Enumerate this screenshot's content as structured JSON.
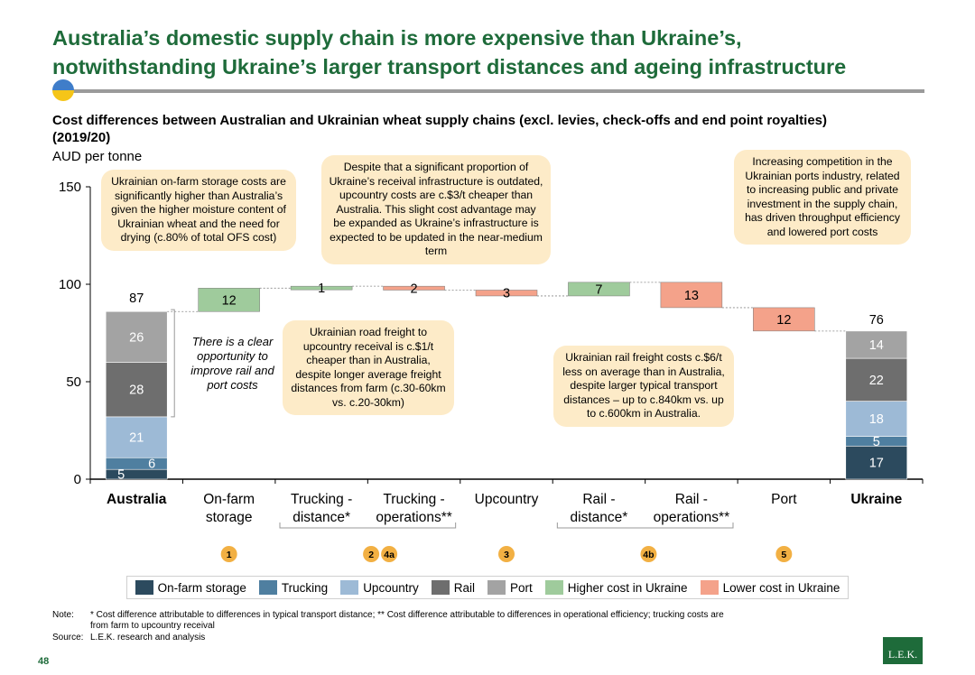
{
  "header": {
    "title_line1": "Australia’s domestic supply chain is more expensive than Ukraine’s,",
    "title_line2": "notwithstanding Ukraine’s larger transport distances and ageing infrastructure",
    "flag_colors": [
      "#3f7dc9",
      "#f5c518"
    ]
  },
  "subtitle_line1": "Cost differences between Australian and Ukrainian wheat supply chains (excl. levies, check-offs and end point royalties)",
  "subtitle_line2": "(2019/20)",
  "unit": "AUD per tonne",
  "chart_data": {
    "type": "bar",
    "subtype": "waterfall",
    "ylim": [
      0,
      150
    ],
    "yticks": [
      0,
      50,
      100,
      150
    ],
    "ylabel": "AUD per tonne",
    "categories": [
      {
        "id": "australia",
        "line1": "Australia",
        "line2": "",
        "bold": true
      },
      {
        "id": "onfarm",
        "line1": "On-farm",
        "line2": "storage"
      },
      {
        "id": "truck_dist",
        "line1": "Trucking -",
        "line2": "distance*"
      },
      {
        "id": "truck_ops",
        "line1": "Trucking -",
        "line2": "operations**"
      },
      {
        "id": "upcountry",
        "line1": "Upcountry",
        "line2": ""
      },
      {
        "id": "rail_dist",
        "line1": "Rail -",
        "line2": "distance*"
      },
      {
        "id": "rail_ops",
        "line1": "Rail -",
        "line2": "operations**"
      },
      {
        "id": "port",
        "line1": "Port",
        "line2": ""
      },
      {
        "id": "ukraine",
        "line1": "Ukraine",
        "line2": "",
        "bold": true
      }
    ],
    "stack_colors": {
      "On-farm storage": "#2c4a5e",
      "Trucking": "#4f7fa0",
      "Upcountry": "#9dbad6",
      "Rail": "#6e6e6e",
      "Port": "#a3a3a3"
    },
    "stacks": [
      {
        "category": "Australia",
        "total": 87,
        "segments": [
          {
            "name": "On-farm storage",
            "value": 5
          },
          {
            "name": "Trucking",
            "value": 6
          },
          {
            "name": "Upcountry",
            "value": 21
          },
          {
            "name": "Rail",
            "value": 28
          },
          {
            "name": "Port",
            "value": 26
          }
        ]
      },
      {
        "category": "Ukraine",
        "total": 76,
        "segments": [
          {
            "name": "On-farm storage",
            "value": 17
          },
          {
            "name": "Trucking",
            "value": 5
          },
          {
            "name": "Upcountry",
            "value": 18
          },
          {
            "name": "Rail",
            "value": 22
          },
          {
            "name": "Port",
            "value": 14
          }
        ]
      }
    ],
    "steps": [
      {
        "category": "On-farm storage",
        "change": 12,
        "label": "12",
        "direction": "Higher cost in Ukraine"
      },
      {
        "category": "Trucking - distance*",
        "change": 1,
        "label": "1",
        "direction": "Higher cost in Ukraine"
      },
      {
        "category": "Trucking - operations**",
        "change": -2,
        "label": "2",
        "direction": "Lower cost in Ukraine"
      },
      {
        "category": "Upcountry",
        "change": -3,
        "label": "3",
        "direction": "Lower cost in Ukraine"
      },
      {
        "category": "Rail - distance*",
        "change": 7,
        "label": "7",
        "direction": "Higher cost in Ukraine"
      },
      {
        "category": "Rail - operations**",
        "change": -13,
        "label": "13",
        "direction": "Lower cost in Ukraine"
      },
      {
        "category": "Port",
        "change": -12,
        "label": "12",
        "direction": "Lower cost in Ukraine"
      }
    ],
    "step_colors": {
      "Higher cost in Ukraine": "#9fcb9c",
      "Lower cost in Ukraine": "#f4a28a"
    },
    "markers": [
      {
        "label": "1",
        "category": "On-farm storage"
      },
      {
        "label": "2",
        "category": "Trucking - distance*"
      },
      {
        "label": "4a",
        "category": "Trucking - distance*"
      },
      {
        "label": "3",
        "category": "Upcountry"
      },
      {
        "label": "4b",
        "category": "Rail - distance*"
      },
      {
        "label": "5",
        "category": "Port"
      }
    ],
    "marker_color": "#f2b043"
  },
  "callouts": {
    "onfarm": "Ukrainian on-farm storage costs are significantly higher than Australia’s given the higher moisture content of Ukrainian wheat and the need for drying (c.80% of total OFS cost)",
    "upcountry": "Despite that a significant proportion of Ukraine’s receival infrastructure is outdated, upcountry costs are c.$3/t cheaper than Australia. This slight cost advantage may be expanded as Ukraine’s infrastructure is expected to be updated in the near-medium term",
    "port": "Increasing competition in the Ukrainian ports industry, related to increasing public and private investment in the supply chain, has driven throughput efficiency and lowered port costs",
    "trucking": "Ukrainian road freight to upcountry receival is c.$1/t cheaper than in Australia, despite longer average freight distances from farm (c.30-60km vs. c.20-30km)",
    "rail": "Ukrainian rail freight costs c.$6/t less on average than in Australia, despite larger typical transport distances – up to c.840km vs. up to c.600km in Australia.",
    "opportunity": "There is a clear opportunity to improve rail and port costs"
  },
  "legend": [
    {
      "label": "On-farm storage",
      "color": "#2c4a5e"
    },
    {
      "label": "Trucking",
      "color": "#4f7fa0"
    },
    {
      "label": "Upcountry",
      "color": "#9dbad6"
    },
    {
      "label": "Rail",
      "color": "#6e6e6e"
    },
    {
      "label": "Port",
      "color": "#a3a3a3"
    },
    {
      "label": "Higher cost in Ukraine",
      "color": "#9fcb9c"
    },
    {
      "label": "Lower cost in Ukraine",
      "color": "#f4a28a"
    }
  ],
  "footer": {
    "note_label": "Note:",
    "note_line1": "* Cost difference attributable to differences in typical transport distance; ** Cost difference attributable to differences in operational efficiency; trucking costs are",
    "note_line2": "from farm to upcountry receival",
    "source_label": "Source:",
    "source_text": "L.E.K. research and analysis",
    "page_number": "48",
    "logo_text": "L.E.K."
  }
}
